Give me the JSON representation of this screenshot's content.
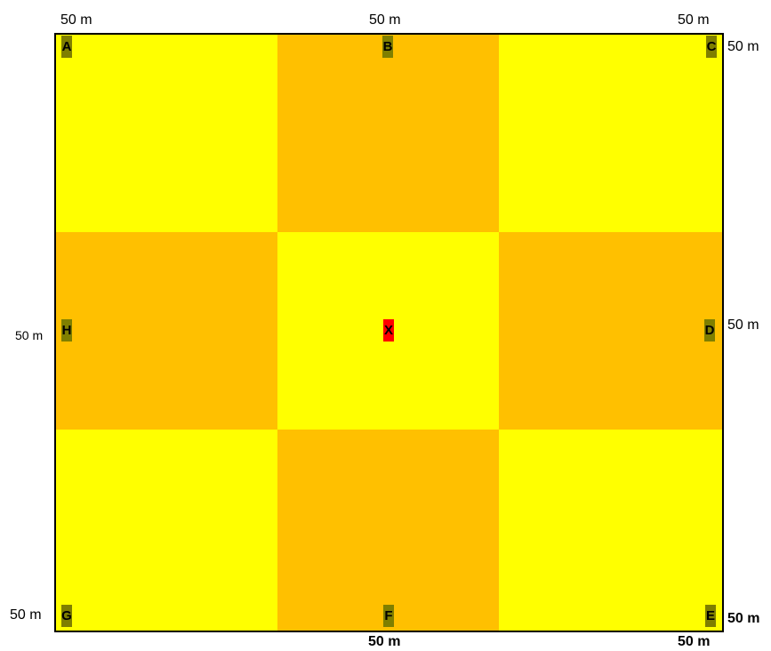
{
  "colors": {
    "light": "#FFFF00",
    "dark": "#FFC000",
    "marker": "#7F7F00",
    "center_marker": "#FF0000",
    "border": "#000000"
  },
  "grid": {
    "cells": [
      [
        "light",
        "dark",
        "light"
      ],
      [
        "dark",
        "light",
        "dark"
      ],
      [
        "light",
        "dark",
        "light"
      ]
    ]
  },
  "labels": {
    "top_left": "50 m",
    "top_center": "50 m",
    "top_right": "50 m",
    "right_top": "50 m",
    "right_middle": "50 m",
    "right_bottom": "50 m",
    "left_middle": "50 m",
    "left_bottom": "50 m",
    "bottom_center": "50 m",
    "bottom_right": "50 m"
  },
  "markers": {
    "A": "A",
    "B": "B",
    "C": "C",
    "D": "D",
    "E": "E",
    "F": "F",
    "G": "G",
    "H": "H",
    "X": "X"
  }
}
